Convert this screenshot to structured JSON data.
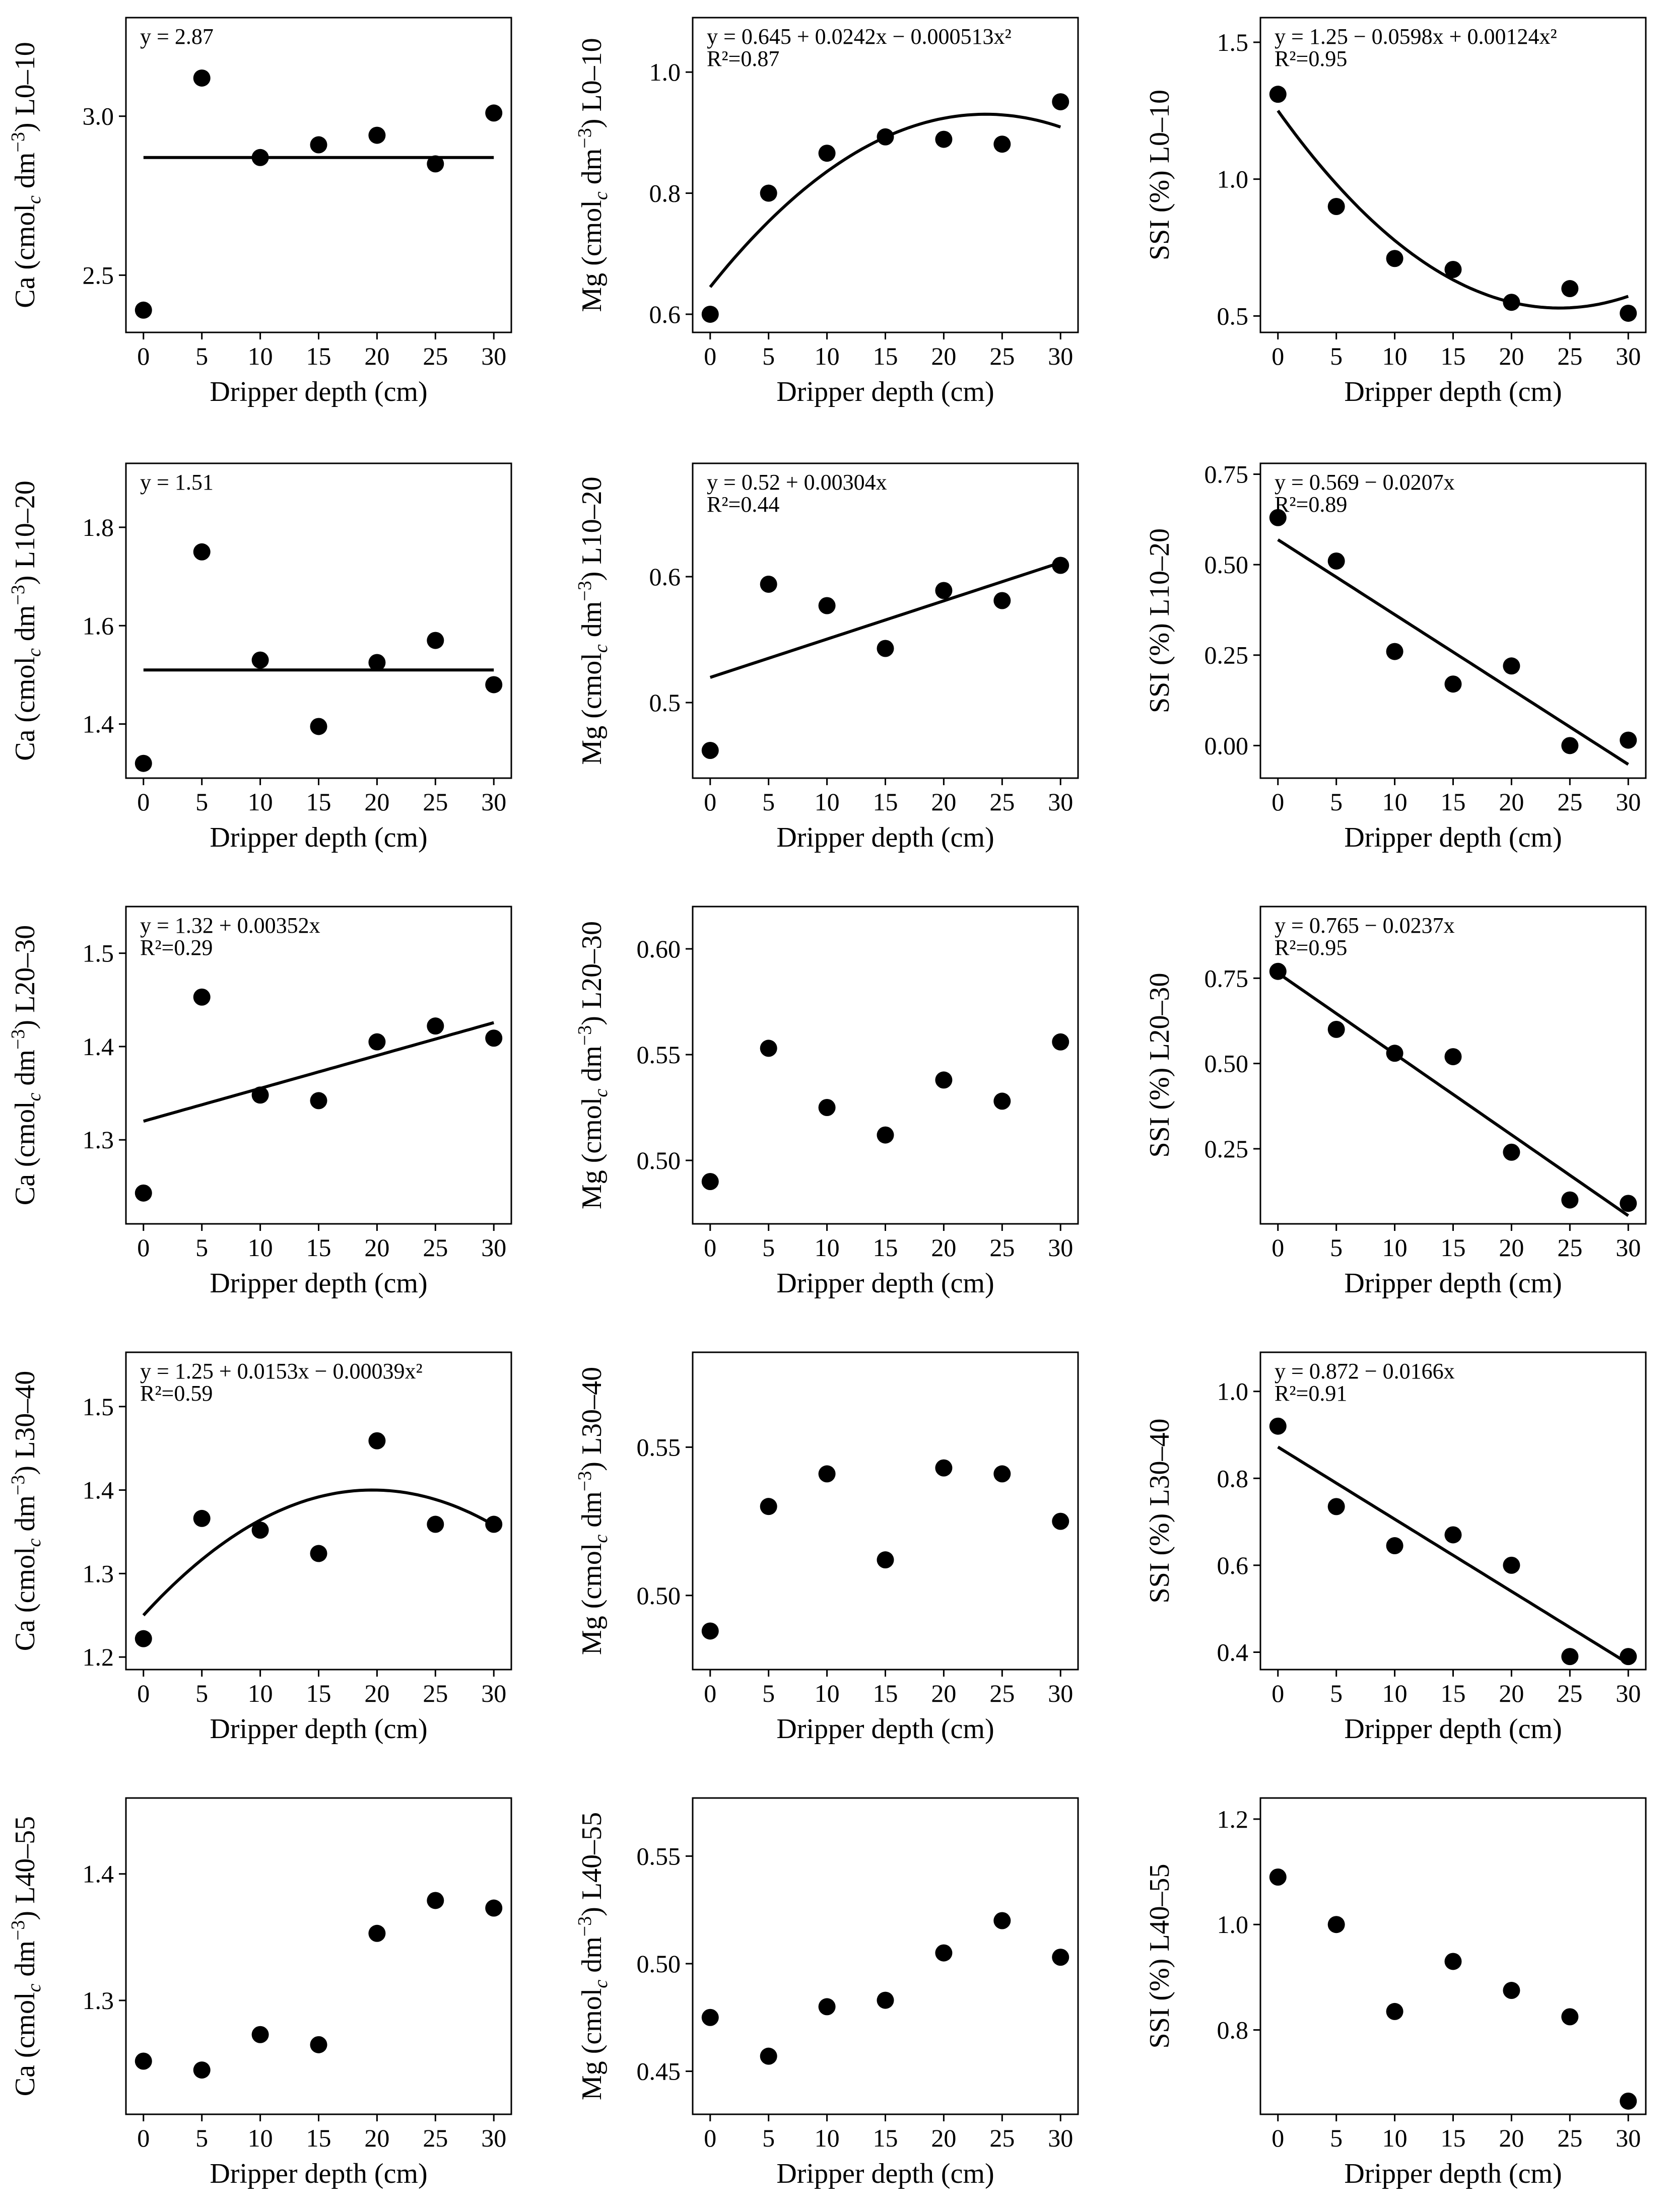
{
  "chart_data": [
    {
      "id": "Ca-L0-10",
      "type": "scatter",
      "ylabel": "Ca (cmol_c dm^-3) L0-10",
      "xlabel": "Dripper depth (cm)",
      "x": [
        0,
        5,
        10,
        15,
        20,
        25,
        30
      ],
      "y": [
        2.39,
        3.12,
        2.87,
        2.91,
        2.94,
        2.85,
        3.01
      ],
      "ylim": [
        2.32,
        3.31
      ],
      "yticks": [
        2.5,
        3.0
      ],
      "ytick_labels": [
        "2.5",
        "3.0"
      ],
      "equation": "y = 2.87",
      "r2": "",
      "fit": {
        "type": "constant",
        "coef": [
          2.87
        ]
      }
    },
    {
      "id": "Mg-L0-10",
      "type": "scatter",
      "ylabel": "Mg (cmol_c dm^-3) L0-10",
      "xlabel": "Dripper depth (cm)",
      "x": [
        0,
        5,
        10,
        15,
        20,
        25,
        30
      ],
      "y": [
        0.6,
        0.8,
        0.866,
        0.893,
        0.889,
        0.881,
        0.951
      ],
      "ylim": [
        0.57,
        1.09
      ],
      "yticks": [
        0.6,
        0.8,
        1.0
      ],
      "ytick_labels": [
        "0.6",
        "0.8",
        "1.0"
      ],
      "equation": "y = 0.645 + 0.0242x − 0.000513x²",
      "r2": "R²=0.87",
      "fit": {
        "type": "poly",
        "coef": [
          0.645,
          0.0242,
          -0.000513
        ]
      }
    },
    {
      "id": "SSI-L0-10",
      "type": "scatter",
      "ylabel": "SSI (%) L0-10",
      "xlabel": "Dripper depth (cm)",
      "x": [
        0,
        5,
        10,
        15,
        20,
        25,
        30
      ],
      "y": [
        1.31,
        0.9,
        0.71,
        0.67,
        0.55,
        0.6,
        0.51
      ],
      "ylim": [
        0.44,
        1.59
      ],
      "yticks": [
        0.5,
        1.0,
        1.5
      ],
      "ytick_labels": [
        "0.5",
        "1.0",
        "1.5"
      ],
      "equation": "y = 1.25 − 0.0598x + 0.00124x²",
      "r2": "R²=0.95",
      "fit": {
        "type": "poly",
        "coef": [
          1.25,
          -0.0598,
          0.00124
        ]
      }
    },
    {
      "id": "Ca-L10-20",
      "type": "scatter",
      "ylabel": "Ca (cmol_c dm^-3) L10-20",
      "xlabel": "Dripper depth (cm)",
      "x": [
        0,
        5,
        10,
        15,
        20,
        25,
        30
      ],
      "y": [
        1.32,
        1.75,
        1.53,
        1.395,
        1.525,
        1.57,
        1.48
      ],
      "ylim": [
        1.29,
        1.93
      ],
      "yticks": [
        1.4,
        1.6,
        1.8
      ],
      "ytick_labels": [
        "1.4",
        "1.6",
        "1.8"
      ],
      "equation": "y = 1.51",
      "r2": "",
      "fit": {
        "type": "constant",
        "coef": [
          1.51
        ]
      }
    },
    {
      "id": "Mg-L10-20",
      "type": "scatter",
      "ylabel": "Mg (cmol_c dm^-3) L10-20",
      "xlabel": "Dripper depth (cm)",
      "x": [
        0,
        5,
        10,
        15,
        20,
        25,
        30
      ],
      "y": [
        0.462,
        0.594,
        0.577,
        0.543,
        0.589,
        0.581,
        0.609
      ],
      "ylim": [
        0.44,
        0.69
      ],
      "yticks": [
        0.5,
        0.6
      ],
      "ytick_labels": [
        "0.5",
        "0.6"
      ],
      "equation": "y = 0.52 + 0.00304x",
      "r2": "R²=0.44",
      "fit": {
        "type": "poly",
        "coef": [
          0.52,
          0.00304
        ]
      }
    },
    {
      "id": "SSI-L10-20",
      "type": "scatter",
      "ylabel": "SSI (%) L10-20",
      "xlabel": "Dripper depth (cm)",
      "x": [
        0,
        5,
        10,
        15,
        20,
        25,
        30
      ],
      "y": [
        0.63,
        0.51,
        0.26,
        0.17,
        0.22,
        0.0,
        0.015
      ],
      "ylim": [
        -0.09,
        0.78
      ],
      "yticks": [
        0.0,
        0.25,
        0.5,
        0.75
      ],
      "ytick_labels": [
        "0.00",
        "0.25",
        "0.50",
        "0.75"
      ],
      "equation": "y = 0.569 − 0.0207x",
      "r2": "R²=0.89",
      "fit": {
        "type": "poly",
        "coef": [
          0.569,
          -0.0207
        ]
      }
    },
    {
      "id": "Ca-L20-30",
      "type": "scatter",
      "ylabel": "Ca (cmol_c dm^-3) L20-30",
      "xlabel": "Dripper depth (cm)",
      "x": [
        0,
        5,
        10,
        15,
        20,
        25,
        30
      ],
      "y": [
        1.243,
        1.453,
        1.348,
        1.342,
        1.405,
        1.422,
        1.409
      ],
      "ylim": [
        1.21,
        1.55
      ],
      "yticks": [
        1.3,
        1.4,
        1.5
      ],
      "ytick_labels": [
        "1.3",
        "1.4",
        "1.5"
      ],
      "equation": "y = 1.32 + 0.00352x",
      "r2": "R²=0.29",
      "fit": {
        "type": "poly",
        "coef": [
          1.32,
          0.00352
        ]
      }
    },
    {
      "id": "Mg-L20-30",
      "type": "scatter",
      "ylabel": "Mg (cmol_c dm^-3) L20-30",
      "xlabel": "Dripper depth (cm)",
      "x": [
        0,
        5,
        10,
        15,
        20,
        25,
        30
      ],
      "y": [
        0.49,
        0.553,
        0.525,
        0.512,
        0.538,
        0.528,
        0.556
      ],
      "ylim": [
        0.47,
        0.62
      ],
      "yticks": [
        0.5,
        0.55,
        0.6
      ],
      "ytick_labels": [
        "0.50",
        "0.55",
        "0.60"
      ],
      "equation": "",
      "r2": "",
      "fit": {
        "type": "none",
        "coef": []
      }
    },
    {
      "id": "SSI-L20-30",
      "type": "scatter",
      "ylabel": "SSI (%) L20-30",
      "xlabel": "Dripper depth (cm)",
      "x": [
        0,
        5,
        10,
        15,
        20,
        25,
        30
      ],
      "y": [
        0.77,
        0.6,
        0.53,
        0.52,
        0.24,
        0.1,
        0.09
      ],
      "ylim": [
        0.03,
        0.96
      ],
      "yticks": [
        0.25,
        0.5,
        0.75
      ],
      "ytick_labels": [
        "0.25",
        "0.50",
        "0.75"
      ],
      "equation": "y = 0.765 − 0.0237x",
      "r2": "R²=0.95",
      "fit": {
        "type": "poly",
        "coef": [
          0.765,
          -0.0237
        ]
      }
    },
    {
      "id": "Ca-L30-40",
      "type": "scatter",
      "ylabel": "Ca (cmol_c dm^-3) L30-40",
      "xlabel": "Dripper depth (cm)",
      "x": [
        0,
        5,
        10,
        15,
        20,
        25,
        30
      ],
      "y": [
        1.222,
        1.366,
        1.352,
        1.324,
        1.459,
        1.359,
        1.359
      ],
      "ylim": [
        1.185,
        1.565
      ],
      "yticks": [
        1.2,
        1.3,
        1.4,
        1.5
      ],
      "ytick_labels": [
        "1.2",
        "1.3",
        "1.4",
        "1.5"
      ],
      "equation": "y = 1.25 + 0.0153x − 0.00039x²",
      "r2": "R²=0.59",
      "fit": {
        "type": "poly",
        "coef": [
          1.25,
          0.0153,
          -0.00039
        ]
      }
    },
    {
      "id": "Mg-L30-40",
      "type": "scatter",
      "ylabel": "Mg (cmol_c dm^-3) L30-40",
      "xlabel": "Dripper depth (cm)",
      "x": [
        0,
        5,
        10,
        15,
        20,
        25,
        30
      ],
      "y": [
        0.488,
        0.53,
        0.541,
        0.512,
        0.543,
        0.541,
        0.525
      ],
      "ylim": [
        0.475,
        0.582
      ],
      "yticks": [
        0.5,
        0.55
      ],
      "ytick_labels": [
        "0.50",
        "0.55"
      ],
      "equation": "",
      "r2": "",
      "fit": {
        "type": "none",
        "coef": []
      }
    },
    {
      "id": "SSI-L30-40",
      "type": "scatter",
      "ylabel": "SSI (%) L30-40",
      "xlabel": "Dripper depth (cm)",
      "x": [
        0,
        5,
        10,
        15,
        20,
        25,
        30
      ],
      "y": [
        0.92,
        0.735,
        0.645,
        0.67,
        0.6,
        0.39,
        0.39
      ],
      "ylim": [
        0.36,
        1.09
      ],
      "yticks": [
        0.4,
        0.6,
        0.8,
        1.0
      ],
      "ytick_labels": [
        "0.4",
        "0.6",
        "0.8",
        "1.0"
      ],
      "equation": "y = 0.872 − 0.0166x",
      "r2": "R²=0.91",
      "fit": {
        "type": "poly",
        "coef": [
          0.872,
          -0.0166
        ]
      }
    },
    {
      "id": "Ca-L40-55",
      "type": "scatter",
      "ylabel": "Ca (cmol_c dm^-3) L40-55",
      "xlabel": "Dripper depth (cm)",
      "x": [
        0,
        5,
        10,
        15,
        20,
        25,
        30
      ],
      "y": [
        1.252,
        1.245,
        1.273,
        1.265,
        1.353,
        1.379,
        1.373
      ],
      "ylim": [
        1.21,
        1.46
      ],
      "yticks": [
        1.3,
        1.4
      ],
      "ytick_labels": [
        "1.3",
        "1.4"
      ],
      "equation": "",
      "r2": "",
      "fit": {
        "type": "none",
        "coef": []
      }
    },
    {
      "id": "Mg-L40-55",
      "type": "scatter",
      "ylabel": "Mg (cmol_c dm^-3) L40-55",
      "xlabel": "Dripper depth (cm)",
      "x": [
        0,
        5,
        10,
        15,
        20,
        25,
        30
      ],
      "y": [
        0.475,
        0.457,
        0.48,
        0.483,
        0.505,
        0.52,
        0.503
      ],
      "ylim": [
        0.43,
        0.577
      ],
      "yticks": [
        0.45,
        0.5,
        0.55
      ],
      "ytick_labels": [
        "0.45",
        "0.50",
        "0.55"
      ],
      "equation": "",
      "r2": "",
      "fit": {
        "type": "none",
        "coef": []
      }
    },
    {
      "id": "SSI-L40-55",
      "type": "scatter",
      "ylabel": "SSI (%) L40-55",
      "xlabel": "Dripper depth (cm)",
      "x": [
        0,
        5,
        10,
        15,
        20,
        25,
        30
      ],
      "y": [
        1.09,
        1.0,
        0.835,
        0.93,
        0.875,
        0.825,
        0.665
      ],
      "ylim": [
        0.64,
        1.24
      ],
      "yticks": [
        0.8,
        1.0,
        1.2
      ],
      "ytick_labels": [
        "0.8",
        "1.0",
        "1.2"
      ],
      "equation": "",
      "r2": "",
      "fit": {
        "type": "none",
        "coef": []
      }
    }
  ],
  "shared": {
    "xlim": [
      -1.5,
      31.5
    ],
    "xticks": [
      0,
      5,
      10,
      15,
      20,
      25,
      30
    ],
    "xtick_labels": [
      "0",
      "5",
      "10",
      "15",
      "20",
      "25",
      "30"
    ]
  }
}
